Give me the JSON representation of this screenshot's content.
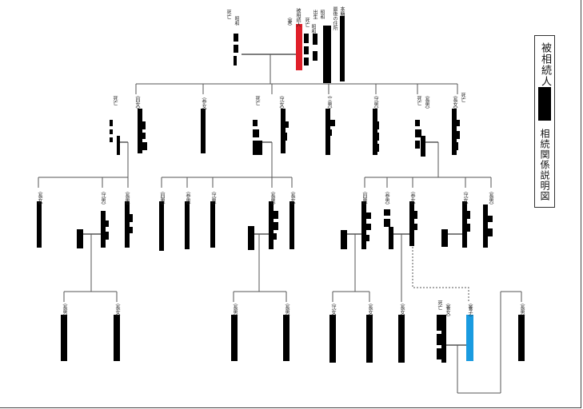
{
  "title": {
    "top": "被相続人",
    "bottom": "相続関係説明図"
  },
  "decedent": {
    "honseki": "本籍",
    "address": "最後の住所",
    "born": "出生",
    "died": "死亡",
    "born_era": "昭和",
    "died_era": "昭和",
    "mark": "日"
  },
  "spouse": {
    "relation": "（妻）",
    "died": "死亡",
    "era": "昭和",
    "mark": "日"
  },
  "gen1": [
    {
      "relation": "（四女）",
      "died": "死亡",
      "era": "平成",
      "marks": "日"
    },
    {
      "relation": "（参女）"
    },
    {
      "relation": "（弐女）",
      "died": "死亡",
      "era": "昭和",
      "marks": "日"
    },
    {
      "relation": "（三男）",
      "died": "死亡",
      "era": "平成",
      "marks": "日"
    },
    {
      "relation": "（弐男）",
      "died": "死亡",
      "era": "昭和",
      "marks": "日"
    },
    {
      "relation": "（長男）",
      "died": "死亡",
      "era": "昭和",
      "marks": "日"
    },
    {
      "relation": "（長女）",
      "died": "死亡",
      "era": "平成",
      "marks": "日"
    }
  ],
  "gen2": [
    {
      "relation": "（長女）"
    },
    {
      "relation": "（弐男）",
      "died": "死亡",
      "era": "平成",
      "marks": "日"
    },
    {
      "relation": "（長男）",
      "died": "死亡",
      "era": "昭和",
      "marks": "日"
    },
    {
      "relation": "（四男）"
    },
    {
      "relation": "（参男）"
    },
    {
      "relation": "（弐男）"
    },
    {
      "relation": "（長男）",
      "died": "死亡",
      "era": "平成",
      "marks": "日"
    },
    {
      "relation": "（長女）"
    },
    {
      "relation": "（四男）",
      "died": "死亡",
      "era": "平成",
      "marks": "日"
    },
    {
      "relation": "（参男）",
      "died": "死亡",
      "era": "平成",
      "marks": "日"
    },
    {
      "relation": "（参女）",
      "died": "死亡",
      "era": "平成",
      "marks": "日"
    },
    {
      "relation": "（弐女）",
      "died": "死亡",
      "era": "平成",
      "marks": "日"
    },
    {
      "relation": "（長男）",
      "died": "死亡",
      "era": "昭和",
      "marks": "日"
    }
  ],
  "gen3": [
    {
      "relation": "（長男）"
    },
    {
      "relation": "（長女）"
    },
    {
      "relation": "（長男）"
    },
    {
      "relation": "（長男）"
    },
    {
      "relation": "（弐女）"
    },
    {
      "relation": "（長女）"
    },
    {
      "relation": "（長女）"
    },
    {
      "relation": "（養女）",
      "died": "死亡",
      "era": "平成",
      "marks": "日"
    },
    {
      "relation": "（養子）"
    },
    {
      "relation": "（長男）"
    }
  ],
  "colors": {
    "decedent": "#e0202a",
    "adopted": "#1a9be0",
    "line": "#555555",
    "redact": "#000000"
  }
}
